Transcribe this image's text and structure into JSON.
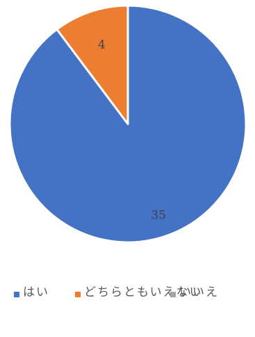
{
  "chart_data": {
    "type": "pie",
    "categories": [
      "はい",
      "どちらともいえない",
      "いいえ"
    ],
    "values": [
      35,
      4,
      0
    ],
    "colors": [
      "#4472c4",
      "#ed7d31",
      "#a5a5a5"
    ],
    "data_labels": [
      "35",
      "4",
      ""
    ],
    "legend_position": "bottom"
  },
  "legend": {
    "items": [
      {
        "label": "はい",
        "color": "#4472c4"
      },
      {
        "label": "どちらともいえない",
        "color": "#ed7d31"
      },
      {
        "label": "いいえ",
        "color": "#a5a5a5"
      }
    ]
  }
}
